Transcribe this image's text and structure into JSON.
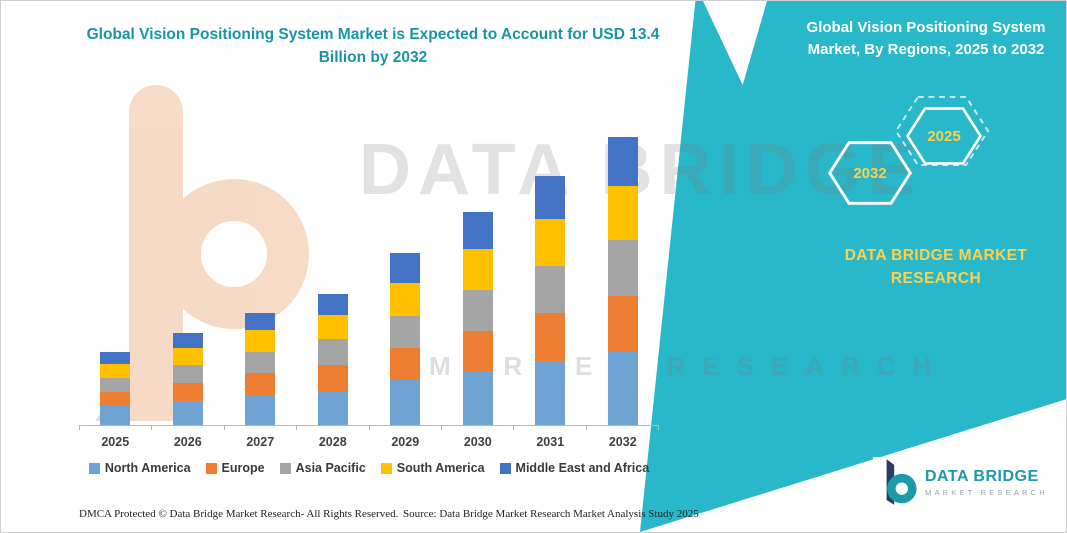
{
  "header": {
    "left_title": "Global Vision Positioning System Market is Expected to Account for USD 13.4 Billion by 2032",
    "right_title": "Global Vision Positioning System Market, By Regions, 2025 to 2032"
  },
  "banner": {
    "hexagons": [
      "2032",
      "2025"
    ],
    "brand_line1": "DATA BRIDGE MARKET",
    "brand_line2": "RESEARCH"
  },
  "watermark": {
    "line1": "DATA BRIDGE",
    "line2": "MARKET RESEARCH"
  },
  "chart_data": {
    "type": "bar",
    "subtype": "stacked",
    "title": "Global Vision Positioning System Market, By Regions, 2025 to 2032",
    "unit": "USD Billion",
    "categories": [
      "2025",
      "2026",
      "2027",
      "2028",
      "2029",
      "2030",
      "2031",
      "2032"
    ],
    "series": [
      {
        "name": "North America",
        "color": "#6FA3D4",
        "values": [
          0.9,
          1.1,
          1.4,
          1.6,
          2.1,
          2.5,
          3.0,
          3.4
        ]
      },
      {
        "name": "Europe",
        "color": "#ED7D31",
        "values": [
          0.65,
          0.85,
          1.0,
          1.2,
          1.5,
          1.9,
          2.2,
          2.6
        ]
      },
      {
        "name": "Asia Pacific",
        "color": "#A5A5A5",
        "values": [
          0.65,
          0.85,
          1.0,
          1.2,
          1.5,
          1.9,
          2.2,
          2.6
        ]
      },
      {
        "name": "South America",
        "color": "#FFC000",
        "values": [
          0.65,
          0.8,
          1.0,
          1.1,
          1.5,
          1.9,
          2.2,
          2.5
        ]
      },
      {
        "name": "Middle East and Africa",
        "color": "#4472C4",
        "values": [
          0.55,
          0.7,
          0.8,
          1.0,
          1.4,
          1.7,
          2.0,
          2.3
        ]
      }
    ],
    "totals": [
      3.4,
      4.3,
      5.2,
      6.1,
      8.0,
      9.9,
      11.6,
      13.4
    ],
    "ylim": [
      0,
      14
    ],
    "grid": false,
    "legend_position": "bottom",
    "annotation": "Expected to account for USD 13.4 Billion by 2032"
  },
  "footer": {
    "dmca": "DMCA Protected © Data Bridge Market Research-  All Rights Reserved.",
    "source": "Source: Data Bridge Market Research  Market Analysis Study 2025"
  },
  "footer_logo": {
    "title": "DATA BRIDGE",
    "subtitle": "MARKET RESEARCH"
  },
  "colors": {
    "banner_teal": "#28B8CA",
    "title_teal": "#1795A7",
    "accent_yellow": "#FFD04A",
    "logo_navy": "#2B3A67",
    "logo_teal": "#1B9AAA"
  }
}
